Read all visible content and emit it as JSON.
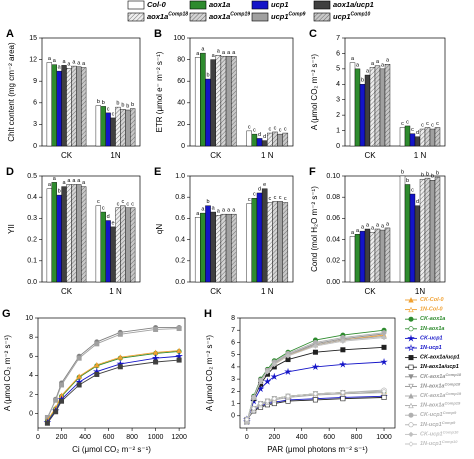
{
  "legend": [
    {
      "name": "Col-0",
      "color": "#ffffff",
      "hatch": false
    },
    {
      "name": "aox1a",
      "color": "#2e8b2e",
      "hatch": false
    },
    {
      "name": "ucp1",
      "color": "#1414c8",
      "hatch": false
    },
    {
      "name": "aox1a/ucp1",
      "color": "#404040",
      "hatch": false
    },
    {
      "name": "aox1a",
      "sup": "Comp18",
      "color": "#eeeeee",
      "hatch": true
    },
    {
      "name": "aox1a",
      "sup": "Comp19",
      "color": "#d4d4d4",
      "hatch": true
    },
    {
      "name": "ucp1",
      "sup": "Comp9",
      "color": "#a0a0a0",
      "hatch": false
    },
    {
      "name": "ucp1",
      "sup": "Comp10",
      "color": "#c8c8c8",
      "hatch": true
    }
  ],
  "chart_data": [
    {
      "type": "bar",
      "panel": "A",
      "ylabel": "Chlt content (mg cm⁻² area)",
      "categories": [
        "CK",
        "1N"
      ],
      "ylim": [
        0,
        15
      ],
      "yticks": [
        0,
        3,
        6,
        9,
        12,
        15
      ],
      "series": [
        {
          "values": [
            11.6,
            5.6
          ],
          "letters": [
            "a",
            "b"
          ]
        },
        {
          "values": [
            11.3,
            5.5
          ],
          "letters": [
            "a",
            "b"
          ]
        },
        {
          "values": [
            10.4,
            4.6
          ],
          "letters": [
            "a",
            "c"
          ]
        },
        {
          "values": [
            11.2,
            3.9
          ],
          "letters": [
            "a",
            "c"
          ]
        },
        {
          "values": [
            10.8,
            5.4
          ],
          "letters": [
            "a",
            "b"
          ]
        },
        {
          "values": [
            11.1,
            5.1
          ],
          "letters": [
            "a",
            "b"
          ]
        },
        {
          "values": [
            11.0,
            5.0
          ],
          "letters": [
            "a",
            "b"
          ]
        },
        {
          "values": [
            10.9,
            5.2
          ],
          "letters": [
            "a",
            "b"
          ]
        }
      ]
    },
    {
      "type": "bar",
      "panel": "B",
      "ylabel": "ETR (μmol e⁻ m⁻² s⁻¹)",
      "categories": [
        "CK",
        "1 N"
      ],
      "ylim": [
        0,
        100
      ],
      "yticks": [
        0,
        20,
        40,
        60,
        80,
        100
      ],
      "series": [
        {
          "values": [
            82,
            14
          ],
          "letters": [
            "a",
            "c"
          ]
        },
        {
          "values": [
            86,
            11
          ],
          "letters": [
            "a",
            "c"
          ]
        },
        {
          "values": [
            62,
            7
          ],
          "letters": [
            "b",
            "d"
          ]
        },
        {
          "values": [
            80,
            5
          ],
          "letters": [
            "a",
            "d"
          ]
        },
        {
          "values": [
            84,
            12
          ],
          "letters": [
            "a",
            "c"
          ]
        },
        {
          "values": [
            83,
            13
          ],
          "letters": [
            "a",
            "c"
          ]
        },
        {
          "values": [
            83,
            11
          ],
          "letters": [
            "a",
            "c"
          ]
        },
        {
          "values": [
            83,
            12
          ],
          "letters": [
            "a",
            "c"
          ]
        }
      ]
    },
    {
      "type": "bar",
      "panel": "C",
      "ylabel": "A (μmol CO₂ m⁻² s⁻¹)",
      "categories": [
        "CK",
        "1 N"
      ],
      "ylim": [
        0,
        7
      ],
      "yticks": [
        0,
        1,
        2,
        3,
        4,
        5,
        6,
        7
      ],
      "series": [
        {
          "values": [
            5.4,
            1.2
          ],
          "letters": [
            "a",
            "c"
          ]
        },
        {
          "values": [
            5.0,
            1.3
          ],
          "letters": [
            "a",
            "c"
          ]
        },
        {
          "values": [
            4.0,
            0.8
          ],
          "letters": [
            "b",
            "c"
          ]
        },
        {
          "values": [
            4.6,
            0.6
          ],
          "letters": [
            "a",
            "d"
          ]
        },
        {
          "values": [
            5.1,
            1.1
          ],
          "letters": [
            "a",
            "c"
          ]
        },
        {
          "values": [
            5.2,
            1.2
          ],
          "letters": [
            "a",
            "c"
          ]
        },
        {
          "values": [
            5.0,
            1.1
          ],
          "letters": [
            "a",
            "c"
          ]
        },
        {
          "values": [
            5.3,
            1.2
          ],
          "letters": [
            "a",
            "c"
          ]
        }
      ]
    },
    {
      "type": "bar",
      "panel": "D",
      "ylabel": "YII",
      "categories": [
        "CK",
        "1 N"
      ],
      "ylim": [
        0,
        0.5
      ],
      "yticks": [
        {
          "value": 0,
          "label": "0.0"
        },
        0.1,
        0.2,
        0.3,
        0.4,
        0.5
      ],
      "series": [
        {
          "values": [
            0.44,
            0.36
          ],
          "letters": [
            "a",
            "c"
          ]
        },
        {
          "values": [
            0.47,
            0.33
          ],
          "letters": [
            "a",
            "c"
          ]
        },
        {
          "values": [
            0.41,
            0.29
          ],
          "letters": [
            "b",
            "d"
          ]
        },
        {
          "values": [
            0.45,
            0.26
          ],
          "letters": [
            "a",
            "e"
          ]
        },
        {
          "values": [
            0.46,
            0.35
          ],
          "letters": [
            "a",
            "c"
          ]
        },
        {
          "values": [
            0.46,
            0.36
          ],
          "letters": [
            "a",
            "c"
          ]
        },
        {
          "values": [
            0.46,
            0.35
          ],
          "letters": [
            "a",
            "c"
          ]
        },
        {
          "values": [
            0.45,
            0.35
          ],
          "letters": [
            "a",
            "c"
          ]
        }
      ]
    },
    {
      "type": "bar",
      "panel": "E",
      "ylabel": "qN",
      "categories": [
        "CK",
        "1 N"
      ],
      "ylim": [
        0,
        1
      ],
      "yticks": [
        {
          "value": 0,
          "label": "0.0"
        },
        0.2,
        0.4,
        0.6,
        0.8,
        {
          "value": 1,
          "label": "1.0"
        }
      ],
      "series": [
        {
          "values": [
            0.61,
            0.74
          ],
          "letters": [
            "a",
            "c"
          ]
        },
        {
          "values": [
            0.65,
            0.79
          ],
          "letters": [
            "a",
            "c"
          ]
        },
        {
          "values": [
            0.72,
            0.84
          ],
          "letters": [
            "b",
            "d"
          ]
        },
        {
          "values": [
            0.66,
            0.88
          ],
          "letters": [
            "a",
            "e"
          ]
        },
        {
          "values": [
            0.63,
            0.75
          ],
          "letters": [
            "a",
            "c"
          ]
        },
        {
          "values": [
            0.64,
            0.76
          ],
          "letters": [
            "a",
            "c"
          ]
        },
        {
          "values": [
            0.64,
            0.76
          ],
          "letters": [
            "a",
            "c"
          ]
        },
        {
          "values": [
            0.64,
            0.75
          ],
          "letters": [
            "a",
            "c"
          ]
        }
      ]
    },
    {
      "type": "bar",
      "panel": "F",
      "ylabel": "Cond (mol H₂O m⁻² s⁻¹)",
      "categories": [
        "CK",
        "1N"
      ],
      "ylim": [
        0,
        0.1
      ],
      "yticks": [
        {
          "value": 0,
          "label": "0.00"
        },
        0.02,
        0.04,
        0.06,
        0.08,
        {
          "value": 0.1,
          "label": "0.10"
        }
      ],
      "series": [
        {
          "values": [
            0.043,
            0.1
          ],
          "letters": [
            "a",
            "b"
          ]
        },
        {
          "values": [
            0.045,
            0.092
          ],
          "letters": [
            "a",
            "b"
          ]
        },
        {
          "values": [
            0.048,
            0.083
          ],
          "letters": [
            "a",
            "c"
          ]
        },
        {
          "values": [
            0.05,
            0.072
          ],
          "letters": [
            "a",
            "d"
          ]
        },
        {
          "values": [
            0.047,
            0.097
          ],
          "letters": [
            "a",
            "b"
          ]
        },
        {
          "values": [
            0.05,
            0.098
          ],
          "letters": [
            "a",
            "b"
          ]
        },
        {
          "values": [
            0.049,
            0.096
          ],
          "letters": [
            "a",
            "b"
          ]
        },
        {
          "values": [
            0.051,
            0.099
          ],
          "letters": [
            "a",
            "b"
          ]
        }
      ]
    },
    {
      "type": "line",
      "panel": "G",
      "xlabel": "Ci (μmol CO₂ m⁻² s⁻¹)",
      "ylabel": "A (μmol CO₂ m⁻² s⁻¹)",
      "x": [
        80,
        150,
        200,
        350,
        500,
        700,
        1000,
        1200
      ],
      "xlim": [
        0,
        1250
      ],
      "xticks": [
        0,
        200,
        400,
        600,
        800,
        1000,
        1200
      ],
      "ylim": [
        -1.5,
        10
      ],
      "yticks": [
        0,
        2,
        4,
        6,
        8,
        10
      ],
      "series": [
        {
          "color": "#808080",
          "marker": "circle",
          "values": [
            -0.5,
            1.5,
            3.2,
            6.0,
            7.5,
            8.5,
            9.0,
            9.0
          ]
        },
        {
          "color": "#a0a0a0",
          "marker": "square",
          "values": [
            -0.4,
            1.4,
            3.0,
            5.8,
            7.3,
            8.3,
            8.8,
            8.9
          ]
        },
        {
          "color": "#2e8b2e",
          "marker": "circle",
          "values": [
            -0.8,
            0.5,
            1.8,
            3.8,
            5.0,
            5.8,
            6.3,
            6.5
          ]
        },
        {
          "color": "#f0a030",
          "marker": "triangle",
          "values": [
            -0.7,
            0.6,
            1.9,
            3.9,
            5.1,
            5.9,
            6.4,
            6.6
          ]
        },
        {
          "color": "#1414c8",
          "marker": "star",
          "values": [
            -0.9,
            0.3,
            1.5,
            3.3,
            4.4,
            5.2,
            5.8,
            6.0
          ]
        },
        {
          "color": "#404040",
          "marker": "square",
          "values": [
            -1.0,
            0.2,
            1.3,
            3.0,
            4.1,
            4.9,
            5.4,
            5.6
          ]
        }
      ]
    },
    {
      "type": "line",
      "panel": "H",
      "xlabel": "PAR (μmol photons m⁻² s⁻¹)",
      "ylabel": "A (μmol CO₂ m⁻² s⁻¹)",
      "x": [
        0,
        50,
        100,
        150,
        200,
        300,
        500,
        700,
        1000
      ],
      "xlim": [
        -50,
        1080
      ],
      "xticks": [
        0,
        200,
        400,
        600,
        800,
        1000
      ],
      "ylim": [
        -1,
        8
      ],
      "yticks": [
        0,
        1,
        2,
        3,
        4,
        5,
        6,
        7,
        8
      ],
      "legend": "outside-right",
      "series": [
        {
          "name": "CK-Col-0",
          "color": "#f0a030",
          "marker": "triangle",
          "open": false,
          "values": [
            -0.5,
            1.5,
            2.8,
            3.6,
            4.2,
            4.9,
            5.8,
            6.2,
            6.6
          ]
        },
        {
          "name": "1N-Col-0",
          "color": "#f0a030",
          "marker": "triangle",
          "open": true,
          "values": [
            -0.3,
            0.6,
            1.0,
            1.2,
            1.4,
            1.6,
            1.8,
            1.9,
            2.0
          ]
        },
        {
          "name": "CK-aox1a",
          "color": "#2e8b2e",
          "marker": "circle",
          "open": false,
          "values": [
            -0.5,
            1.6,
            3.0,
            3.8,
            4.5,
            5.2,
            6.2,
            6.6,
            7.0
          ]
        },
        {
          "name": "1N-aox1a",
          "color": "#2e8b2e",
          "marker": "circle",
          "open": true,
          "values": [
            -0.3,
            0.6,
            1.0,
            1.2,
            1.4,
            1.6,
            1.8,
            1.9,
            2.0
          ]
        },
        {
          "name": "CK-ucp1",
          "color": "#1414c8",
          "marker": "star",
          "open": false,
          "values": [
            -0.5,
            1.2,
            2.2,
            2.8,
            3.2,
            3.6,
            4.0,
            4.2,
            4.4
          ]
        },
        {
          "name": "1N-ucp1",
          "color": "#1414c8",
          "marker": "star",
          "open": true,
          "values": [
            -0.3,
            0.5,
            0.8,
            1.0,
            1.1,
            1.3,
            1.4,
            1.5,
            1.6
          ]
        },
        {
          "name": "CK-aox1a/ucp1",
          "color": "#202020",
          "marker": "square",
          "open": false,
          "values": [
            -0.5,
            1.4,
            2.6,
            3.4,
            4.0,
            4.6,
            5.2,
            5.4,
            5.6
          ]
        },
        {
          "name": "1N-aox1a/ucp1",
          "color": "#202020",
          "marker": "square",
          "open": true,
          "values": [
            -0.3,
            0.4,
            0.7,
            0.9,
            1.0,
            1.2,
            1.3,
            1.4,
            1.5
          ]
        },
        {
          "name": "CK-aox1a",
          "sup": "Comp18",
          "color": "#909090",
          "marker": "tridown",
          "open": false,
          "values": [
            -0.5,
            1.5,
            2.9,
            3.7,
            4.3,
            5.0,
            5.9,
            6.3,
            6.7
          ]
        },
        {
          "name": "1N-aox1a",
          "sup": "Comp18",
          "color": "#909090",
          "marker": "tridown",
          "open": true,
          "values": [
            -0.3,
            0.6,
            1.0,
            1.2,
            1.4,
            1.6,
            1.8,
            1.9,
            2.0
          ]
        },
        {
          "name": "CK-aox1a",
          "sup": "Comp19",
          "color": "#a8a8a8",
          "marker": "triangle",
          "open": false,
          "values": [
            -0.5,
            1.5,
            2.8,
            3.7,
            4.3,
            5.0,
            5.8,
            6.2,
            6.5
          ]
        },
        {
          "name": "1N-aox1a",
          "sup": "Comp19",
          "color": "#a8a8a8",
          "marker": "triangle",
          "open": true,
          "values": [
            -0.3,
            0.5,
            0.9,
            1.1,
            1.3,
            1.5,
            1.7,
            1.8,
            1.9
          ]
        },
        {
          "name": "CK-ucp1",
          "sup": "Comp9",
          "color": "#b0b0b0",
          "marker": "circle",
          "open": false,
          "values": [
            -0.5,
            1.5,
            2.9,
            3.7,
            4.4,
            5.1,
            6.0,
            6.4,
            6.8
          ]
        },
        {
          "name": "1N-ucp1",
          "sup": "Comp9",
          "color": "#b0b0b0",
          "marker": "circle",
          "open": true,
          "values": [
            -0.3,
            0.6,
            1.0,
            1.2,
            1.4,
            1.6,
            1.8,
            1.9,
            2.1
          ]
        },
        {
          "name": "CK-ucp1",
          "sup": "Comp10",
          "color": "#c0c0c0",
          "marker": "diamond",
          "open": false,
          "values": [
            -0.5,
            1.5,
            2.8,
            3.6,
            4.2,
            4.9,
            5.7,
            6.1,
            6.4
          ]
        },
        {
          "name": "1N-ucp1",
          "sup": "Comp10",
          "color": "#c0c0c0",
          "marker": "diamond",
          "open": true,
          "values": [
            -0.3,
            0.6,
            1.0,
            1.2,
            1.4,
            1.6,
            1.8,
            1.9,
            2.0
          ]
        }
      ]
    }
  ]
}
